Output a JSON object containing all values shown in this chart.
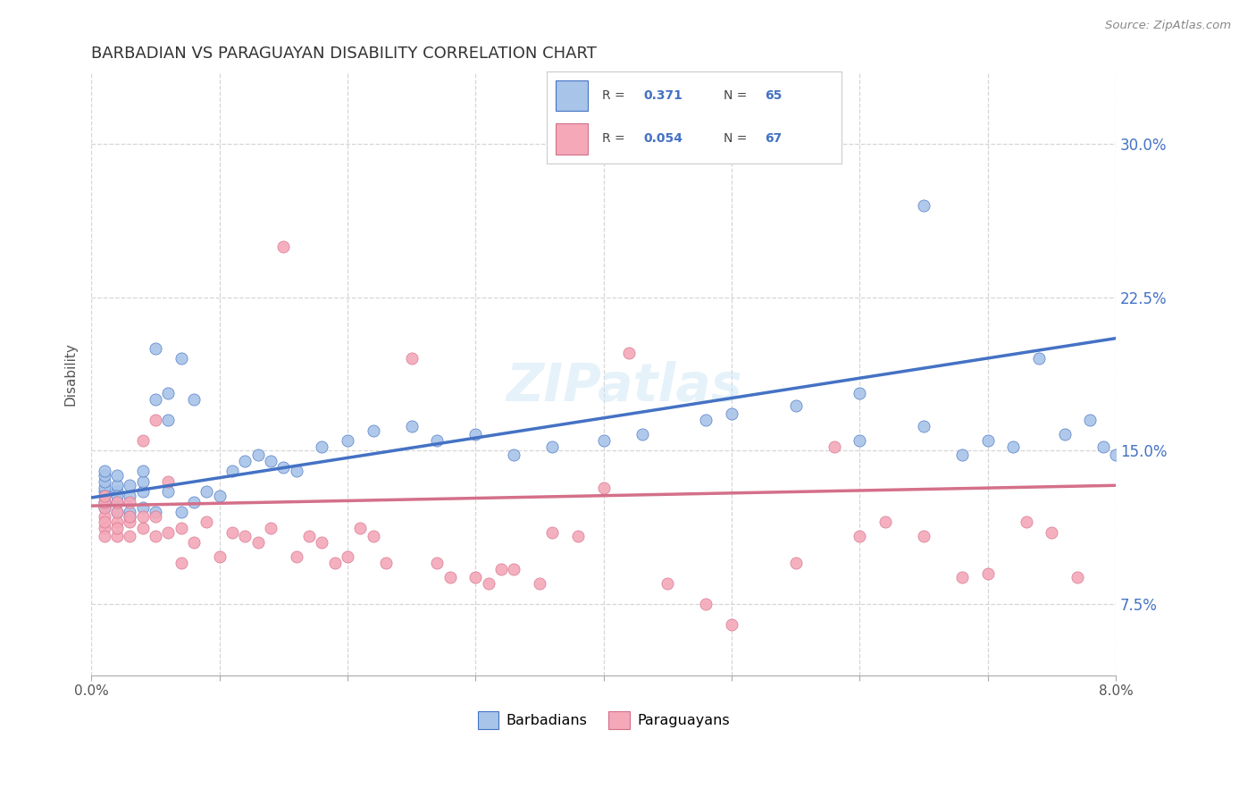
{
  "title": "BARBADIAN VS PARAGUAYAN DISABILITY CORRELATION CHART",
  "source": "Source: ZipAtlas.com",
  "ylabel": "Disability",
  "y_ticks": [
    0.075,
    0.15,
    0.225,
    0.3
  ],
  "y_tick_labels": [
    "7.5%",
    "15.0%",
    "22.5%",
    "30.0%"
  ],
  "legend_r_barbadian": "0.371",
  "legend_n_barbadian": "65",
  "legend_r_paraguayan": "0.054",
  "legend_n_paraguayan": "67",
  "barbadian_color": "#a8c4e8",
  "paraguayan_color": "#f4a8b8",
  "barbadian_line_color": "#4472c4",
  "paraguayan_line_color": "#d4708a",
  "background_color": "#ffffff",
  "grid_color": "#cccccc",
  "barbadian_x": [
    0.001,
    0.001,
    0.001,
    0.001,
    0.001,
    0.001,
    0.001,
    0.001,
    0.002,
    0.002,
    0.002,
    0.002,
    0.002,
    0.002,
    0.003,
    0.003,
    0.003,
    0.003,
    0.004,
    0.004,
    0.004,
    0.004,
    0.005,
    0.005,
    0.005,
    0.006,
    0.006,
    0.006,
    0.007,
    0.007,
    0.008,
    0.008,
    0.009,
    0.01,
    0.011,
    0.012,
    0.013,
    0.014,
    0.015,
    0.016,
    0.018,
    0.02,
    0.022,
    0.025,
    0.027,
    0.03,
    0.033,
    0.036,
    0.04,
    0.043,
    0.048,
    0.05,
    0.055,
    0.06,
    0.065,
    0.06,
    0.065,
    0.068,
    0.07,
    0.072,
    0.074,
    0.076,
    0.078,
    0.079,
    0.08
  ],
  "barbadian_y": [
    0.13,
    0.132,
    0.135,
    0.138,
    0.14,
    0.128,
    0.125,
    0.122,
    0.12,
    0.125,
    0.13,
    0.133,
    0.138,
    0.128,
    0.118,
    0.128,
    0.133,
    0.12,
    0.122,
    0.13,
    0.135,
    0.14,
    0.12,
    0.2,
    0.175,
    0.13,
    0.178,
    0.165,
    0.12,
    0.195,
    0.125,
    0.175,
    0.13,
    0.128,
    0.14,
    0.145,
    0.148,
    0.145,
    0.142,
    0.14,
    0.152,
    0.155,
    0.16,
    0.162,
    0.155,
    0.158,
    0.148,
    0.152,
    0.155,
    0.158,
    0.165,
    0.168,
    0.172,
    0.178,
    0.27,
    0.155,
    0.162,
    0.148,
    0.155,
    0.152,
    0.195,
    0.158,
    0.165,
    0.152,
    0.148
  ],
  "paraguayan_x": [
    0.001,
    0.001,
    0.001,
    0.001,
    0.001,
    0.001,
    0.001,
    0.002,
    0.002,
    0.002,
    0.002,
    0.002,
    0.003,
    0.003,
    0.003,
    0.003,
    0.004,
    0.004,
    0.004,
    0.005,
    0.005,
    0.005,
    0.006,
    0.006,
    0.007,
    0.007,
    0.008,
    0.009,
    0.01,
    0.011,
    0.012,
    0.013,
    0.014,
    0.015,
    0.016,
    0.017,
    0.018,
    0.019,
    0.02,
    0.021,
    0.022,
    0.023,
    0.025,
    0.027,
    0.028,
    0.03,
    0.031,
    0.032,
    0.033,
    0.035,
    0.036,
    0.038,
    0.04,
    0.042,
    0.045,
    0.048,
    0.05,
    0.055,
    0.058,
    0.06,
    0.062,
    0.065,
    0.068,
    0.07,
    0.073,
    0.075,
    0.077
  ],
  "paraguayan_y": [
    0.112,
    0.118,
    0.122,
    0.125,
    0.128,
    0.108,
    0.115,
    0.108,
    0.115,
    0.12,
    0.125,
    0.112,
    0.108,
    0.115,
    0.118,
    0.125,
    0.112,
    0.118,
    0.155,
    0.108,
    0.118,
    0.165,
    0.11,
    0.135,
    0.095,
    0.112,
    0.105,
    0.115,
    0.098,
    0.11,
    0.108,
    0.105,
    0.112,
    0.25,
    0.098,
    0.108,
    0.105,
    0.095,
    0.098,
    0.112,
    0.108,
    0.095,
    0.195,
    0.095,
    0.088,
    0.088,
    0.085,
    0.092,
    0.092,
    0.085,
    0.11,
    0.108,
    0.132,
    0.198,
    0.085,
    0.075,
    0.065,
    0.095,
    0.152,
    0.108,
    0.115,
    0.108,
    0.088,
    0.09,
    0.115,
    0.11,
    0.088
  ]
}
